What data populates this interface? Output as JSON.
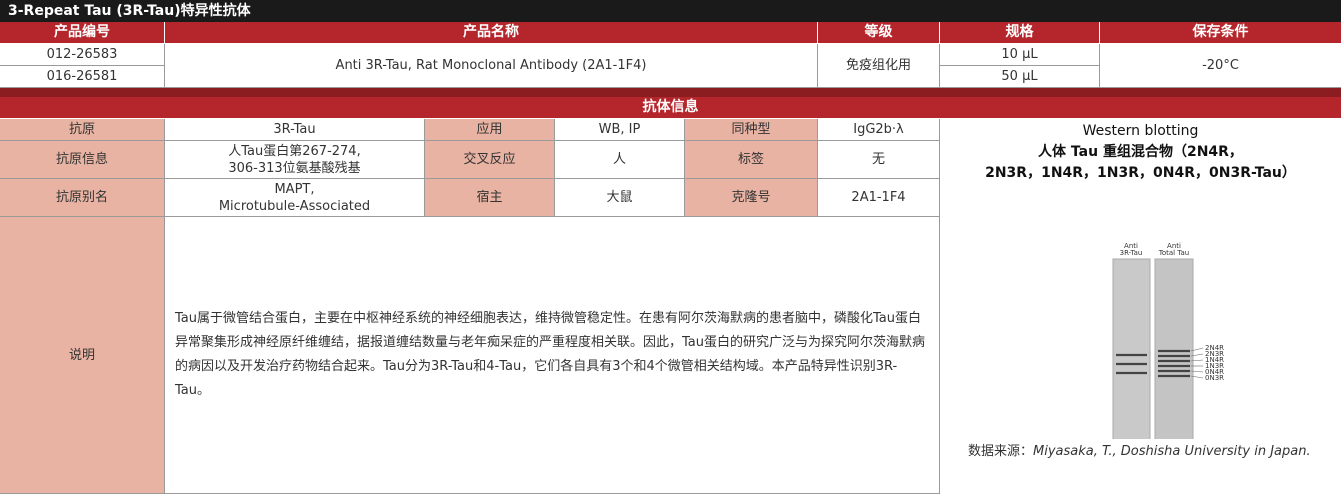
{
  "title": "3-Repeat Tau (3R-Tau)特异性抗体",
  "product_table": {
    "headers": [
      "产品编号",
      "产品名称",
      "等级",
      "规格",
      "保存条件"
    ],
    "codes": [
      "012-26583",
      "016-26581"
    ],
    "name": "Anti 3R-Tau, Rat Monoclonal Antibody (2A1-1F4)",
    "grade": "免疫组化用",
    "sizes": [
      "10 μL",
      "50 μL"
    ],
    "storage": "-20°C"
  },
  "info_table": {
    "title": "抗体信息",
    "rows": [
      [
        "抗原",
        "3R-Tau",
        "应用",
        "WB, IP",
        "同种型",
        "IgG2b·λ"
      ],
      [
        "抗原信息",
        "人Tau蛋白第267-274,\n306-313位氨基酸残基",
        "交叉反应",
        "人",
        "标签",
        "无"
      ],
      [
        "抗原别名",
        "MAPT,\nMicrotubule-Associated",
        "宿主",
        "大鼠",
        "克隆号",
        "2A1-1F4"
      ]
    ],
    "description_label": "说明",
    "description": "Tau属于微管结合蛋白，主要在中枢神经系统的神经细胞表达，维持微管稳定性。在患有阿尔茨海默病的患者脑中，磷酸化Tau蛋白异常聚集形成神经原纤维缠结，据报道缠结数量与老年痴呆症的严重程度相关联。因此，Tau蛋白的研究广泛与为探究阿尔茨海默病的病因以及开发治疗药物结合起来。Tau分为3R-Tau和4-Tau，它们各自具有3个和4个微管相关结构域。本产品特异性识别3R-Tau。"
  },
  "figure": {
    "title": "Western blotting",
    "subtitle": "人体 Tau 重组混合物（2N4R，\n2N3R，1N4R，1N3R，0N4R，0N3R-Tau）",
    "lanes": [
      [
        "Anti",
        "3R-Tau"
      ],
      [
        "Anti",
        "Total Tau"
      ]
    ],
    "band_labels": [
      "2N4R",
      "2N3R",
      "1N4R",
      "1N3R",
      "0N4R",
      "0N3R"
    ],
    "source_label": "数据来源：",
    "source": "Miyasaka, T., Doshisha University in Japan."
  }
}
